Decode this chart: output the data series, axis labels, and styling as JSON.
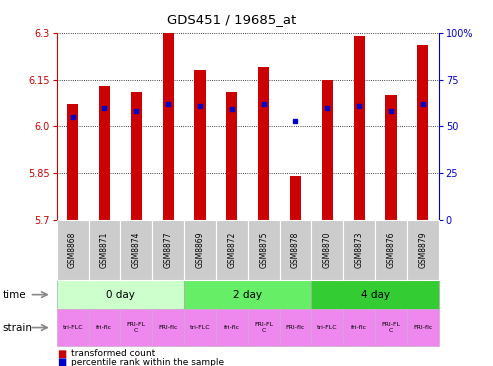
{
  "title": "GDS451 / 19685_at",
  "samples": [
    "GSM8868",
    "GSM8871",
    "GSM8874",
    "GSM8877",
    "GSM8869",
    "GSM8872",
    "GSM8875",
    "GSM8878",
    "GSM8870",
    "GSM8873",
    "GSM8876",
    "GSM8879"
  ],
  "transformed_counts": [
    6.07,
    6.13,
    6.11,
    6.3,
    6.18,
    6.11,
    6.19,
    5.84,
    6.15,
    6.29,
    6.1,
    6.26
  ],
  "percentile_ranks": [
    55,
    60,
    58,
    62,
    61,
    59,
    62,
    53,
    60,
    61,
    58,
    62
  ],
  "y_min": 5.7,
  "y_max": 6.3,
  "y_ticks_left": [
    5.7,
    5.85,
    6.0,
    6.15,
    6.3
  ],
  "y_ticks_right": [
    0,
    25,
    50,
    75,
    100
  ],
  "bar_color": "#cc0000",
  "dot_color": "#0000cc",
  "left_axis_color": "#cc0000",
  "right_axis_color": "#0000cc",
  "bar_width": 0.35,
  "time_groups": [
    {
      "label": "0 day",
      "start": 0,
      "end": 3,
      "color": "#ccffcc"
    },
    {
      "label": "2 day",
      "start": 4,
      "end": 7,
      "color": "#66ee66"
    },
    {
      "label": "4 day",
      "start": 8,
      "end": 11,
      "color": "#33cc33"
    }
  ],
  "strain_labels": [
    "tri-FLC",
    "fri-flc",
    "FRI-FL\nC",
    "FRI-flc",
    "tri-FLC",
    "fri-flc",
    "FRI-FL\nC",
    "FRI-flc",
    "tri-FLC",
    "fri-flc",
    "FRI-FL\nC",
    "FRI-flc"
  ],
  "strain_bg_color": "#ee88ee",
  "sample_box_color": "#cccccc",
  "legend_bar_label": "transformed count",
  "legend_dot_label": "percentile rank within the sample"
}
